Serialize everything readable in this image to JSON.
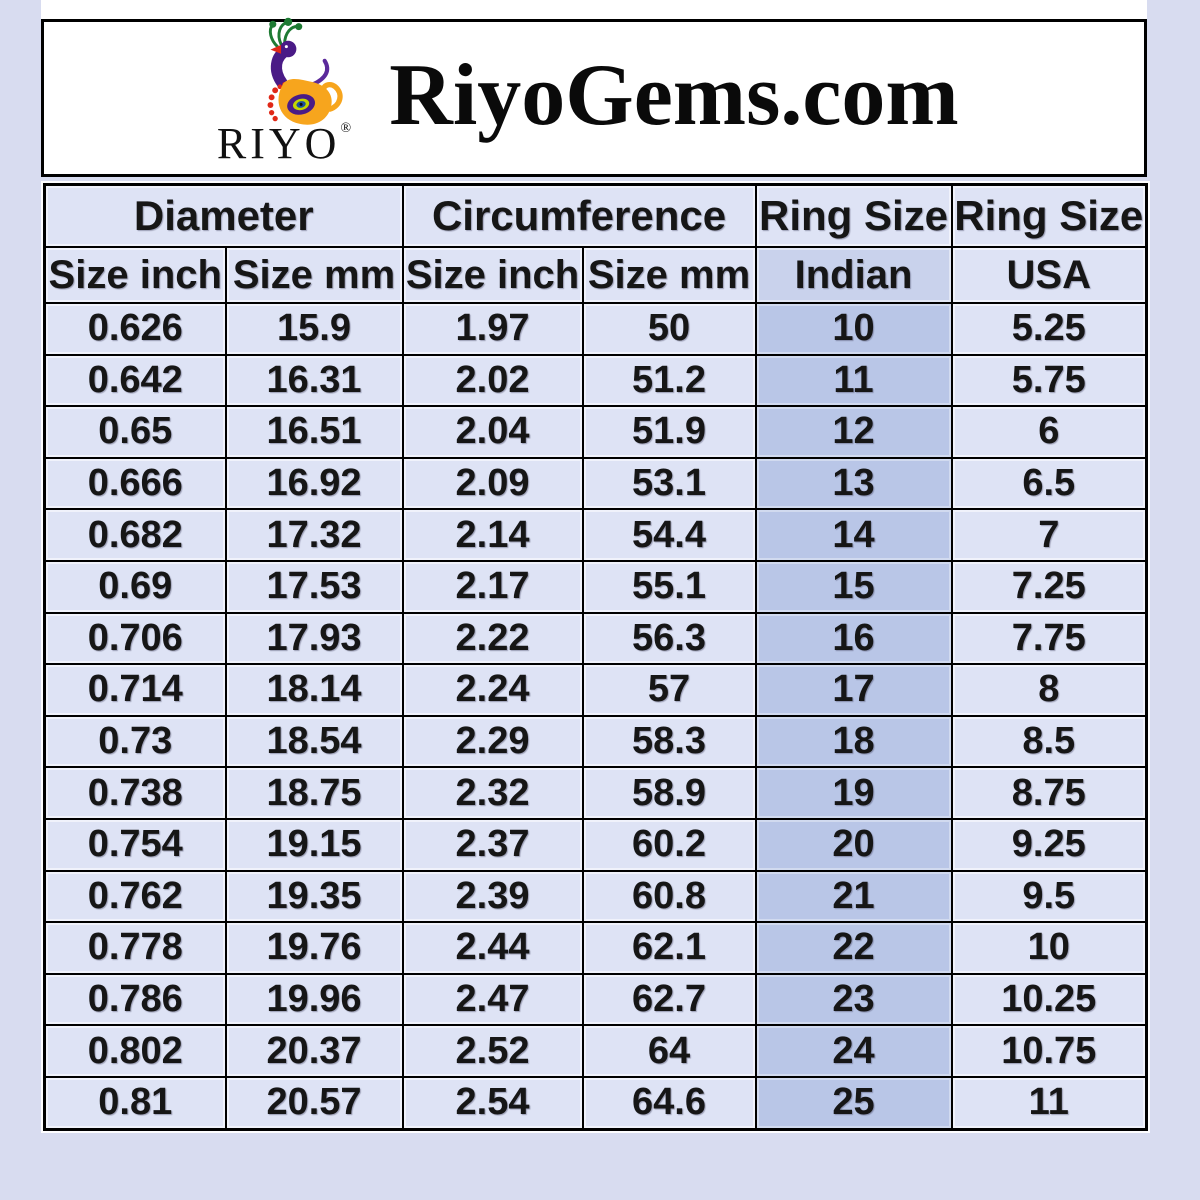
{
  "header": {
    "title": "RiyoGems.com",
    "logo": {
      "brand": "RIYO",
      "registered_mark": "®",
      "icon": "peacock-logo",
      "colors": {
        "purple": "#4a1b86",
        "green": "#1e7a33",
        "orange": "#f7a51d",
        "red": "#e02817",
        "lime": "#c3d600",
        "blue": "#1b4f9e"
      }
    }
  },
  "table": {
    "group_headers": [
      {
        "label": "Diameter",
        "span": 2
      },
      {
        "label": "Circumference",
        "span": 2
      },
      {
        "label": "Ring Size",
        "span": 1
      },
      {
        "label": "Ring Size",
        "span": 1
      }
    ],
    "sub_headers": [
      "Size inch",
      "Size mm",
      "Size inch",
      "Size mm",
      "Indian",
      "USA"
    ],
    "column_keys": [
      "diameter-inch",
      "diameter-mm",
      "circumference-inch",
      "circumference-mm",
      "ring-size-indian",
      "ring-size-usa"
    ],
    "rows": [
      [
        "0.626",
        "15.9",
        "1.97",
        "50",
        "10",
        "5.25"
      ],
      [
        "0.642",
        "16.31",
        "2.02",
        "51.2",
        "11",
        "5.75"
      ],
      [
        "0.65",
        "16.51",
        "2.04",
        "51.9",
        "12",
        "6"
      ],
      [
        "0.666",
        "16.92",
        "2.09",
        "53.1",
        "13",
        "6.5"
      ],
      [
        "0.682",
        "17.32",
        "2.14",
        "54.4",
        "14",
        "7"
      ],
      [
        "0.69",
        "17.53",
        "2.17",
        "55.1",
        "15",
        "7.25"
      ],
      [
        "0.706",
        "17.93",
        "2.22",
        "56.3",
        "16",
        "7.75"
      ],
      [
        "0.714",
        "18.14",
        "2.24",
        "57",
        "17",
        "8"
      ],
      [
        "0.73",
        "18.54",
        "2.29",
        "58.3",
        "18",
        "8.5"
      ],
      [
        "0.738",
        "18.75",
        "2.32",
        "58.9",
        "19",
        "8.75"
      ],
      [
        "0.754",
        "19.15",
        "2.37",
        "60.2",
        "20",
        "9.25"
      ],
      [
        "0.762",
        "19.35",
        "2.39",
        "60.8",
        "21",
        "9.5"
      ],
      [
        "0.778",
        "19.76",
        "2.44",
        "62.1",
        "22",
        "10"
      ],
      [
        "0.786",
        "19.96",
        "2.47",
        "62.7",
        "23",
        "10.25"
      ],
      [
        "0.802",
        "20.37",
        "2.52",
        "64",
        "24",
        "10.75"
      ],
      [
        "0.81",
        "20.57",
        "2.54",
        "64.6",
        "25",
        "11"
      ]
    ]
  },
  "colors": {
    "page_background": "#d8dcf0",
    "cell_background": "#dee3f5",
    "indian_header_background": "#c9d2ec",
    "indian_cell_background": "#b9c6e7",
    "border": "#000000",
    "banner_background": "#ffffff"
  },
  "chart_data": {
    "type": "table",
    "title": "RiyoGems.com",
    "columns": [
      "Diameter Size inch",
      "Diameter Size mm",
      "Circumference Size inch",
      "Circumference Size mm",
      "Ring Size Indian",
      "Ring Size USA"
    ],
    "rows": [
      [
        0.626,
        15.9,
        1.97,
        50,
        10,
        5.25
      ],
      [
        0.642,
        16.31,
        2.02,
        51.2,
        11,
        5.75
      ],
      [
        0.65,
        16.51,
        2.04,
        51.9,
        12,
        6
      ],
      [
        0.666,
        16.92,
        2.09,
        53.1,
        13,
        6.5
      ],
      [
        0.682,
        17.32,
        2.14,
        54.4,
        14,
        7
      ],
      [
        0.69,
        17.53,
        2.17,
        55.1,
        15,
        7.25
      ],
      [
        0.706,
        17.93,
        2.22,
        56.3,
        16,
        7.75
      ],
      [
        0.714,
        18.14,
        2.24,
        57,
        17,
        8
      ],
      [
        0.73,
        18.54,
        2.29,
        58.3,
        18,
        8.5
      ],
      [
        0.738,
        18.75,
        2.32,
        58.9,
        19,
        8.75
      ],
      [
        0.754,
        19.15,
        2.37,
        60.2,
        20,
        9.25
      ],
      [
        0.762,
        19.35,
        2.39,
        60.8,
        21,
        9.5
      ],
      [
        0.778,
        19.76,
        2.44,
        62.1,
        22,
        10
      ],
      [
        0.786,
        19.96,
        2.47,
        62.7,
        23,
        10.25
      ],
      [
        0.802,
        20.37,
        2.52,
        64,
        24,
        10.75
      ],
      [
        0.81,
        20.57,
        2.54,
        64.6,
        25,
        11
      ]
    ]
  }
}
